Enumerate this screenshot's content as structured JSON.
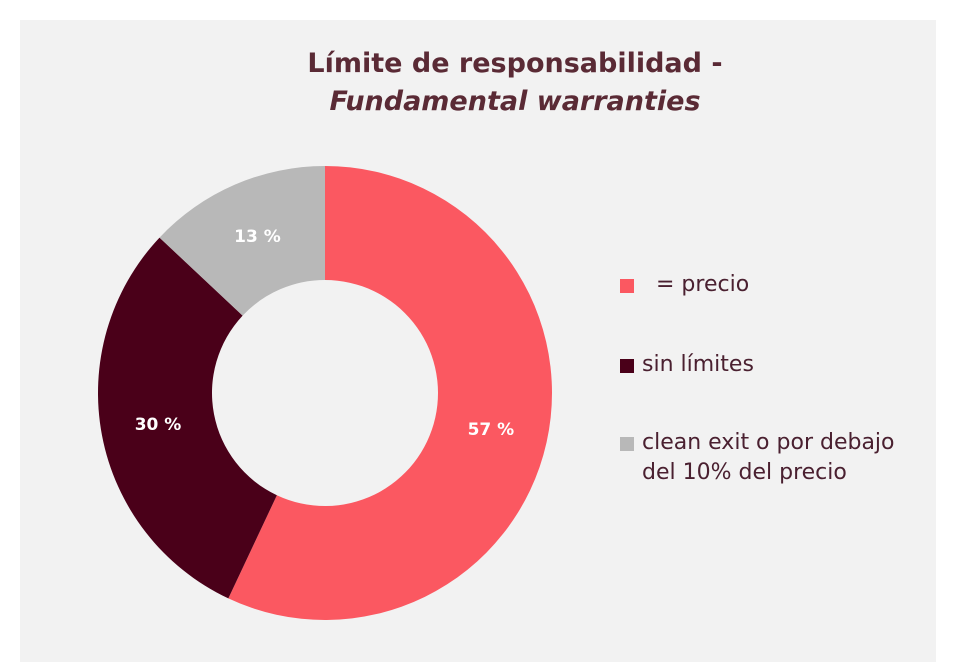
{
  "chart_data": {
    "type": "pie",
    "title": "Límite de responsabilidad -",
    "subtitle": "Fundamental warranties",
    "categories": [
      "  = precio",
      "sin límites",
      "clean exit o por debajo del 10% del precio"
    ],
    "values": [
      57,
      30,
      13
    ],
    "value_labels": [
      "57 %",
      "30 %",
      "13 %"
    ],
    "colors": [
      "#fb5861",
      "#4a0019",
      "#b8b8b8"
    ],
    "legend": "right"
  }
}
